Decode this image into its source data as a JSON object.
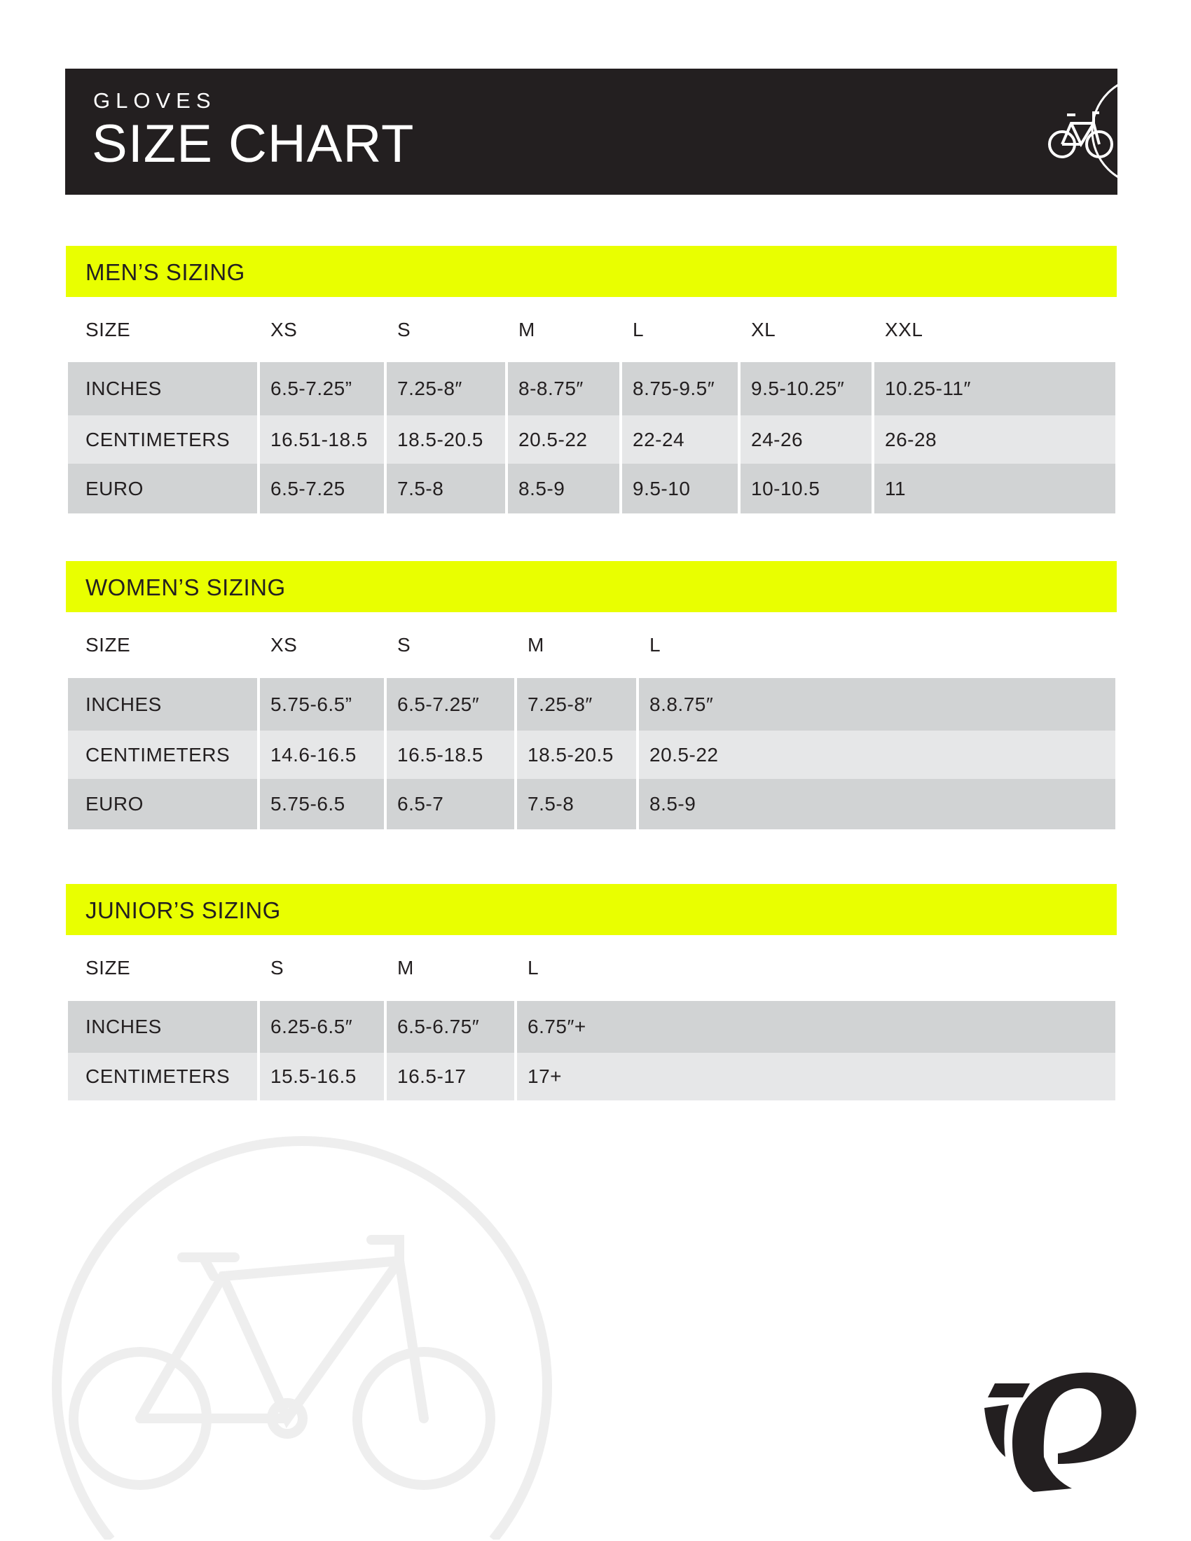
{
  "header": {
    "subtitle": "GLOVES",
    "title": "SIZE CHART",
    "icon": "bicycle-icon"
  },
  "colors": {
    "accent": "#e9ff00",
    "header_bg": "#231f20",
    "row_dark": "#d1d3d4",
    "row_light": "#e6e7e8"
  },
  "sections": [
    {
      "title": "MEN’S SIZING",
      "headers": [
        "SIZE",
        "XS",
        "S",
        "M",
        "L",
        "XL",
        "XXL"
      ],
      "rows": [
        [
          "INCHES",
          "6.5-7.25”",
          "7.25-8″",
          "8-8.75″",
          "8.75-9.5″",
          "9.5-10.25″",
          "10.25-11″"
        ],
        [
          "CENTIMETERS",
          "16.51-18.5",
          "18.5-20.5",
          "20.5-22",
          "22-24",
          "24-26",
          "26-28"
        ],
        [
          "EURO",
          "6.5-7.25",
          "7.5-8",
          "8.5-9",
          "9.5-10",
          "10-10.5",
          "11"
        ]
      ]
    },
    {
      "title": "WOMEN’S SIZING",
      "headers": [
        "SIZE",
        "XS",
        "S",
        "M",
        "L"
      ],
      "rows": [
        [
          "INCHES",
          "5.75-6.5”",
          "6.5-7.25″",
          "7.25-8″",
          "8.8.75″"
        ],
        [
          "CENTIMETERS",
          "14.6-16.5",
          "16.5-18.5",
          "18.5-20.5",
          "20.5-22"
        ],
        [
          "EURO",
          "5.75-6.5",
          "6.5-7",
          "7.5-8",
          "8.5-9"
        ]
      ]
    },
    {
      "title": "JUNIOR’S SIZING",
      "headers": [
        "SIZE",
        "S",
        "M",
        "L"
      ],
      "rows": [
        [
          "INCHES",
          "6.25-6.5″",
          "6.5-6.75″",
          "6.75″+"
        ],
        [
          "CENTIMETERS",
          "15.5-16.5",
          "16.5-17",
          "17+"
        ]
      ]
    }
  ],
  "watermark": "bicycle-icon",
  "logo": "brand-logo"
}
